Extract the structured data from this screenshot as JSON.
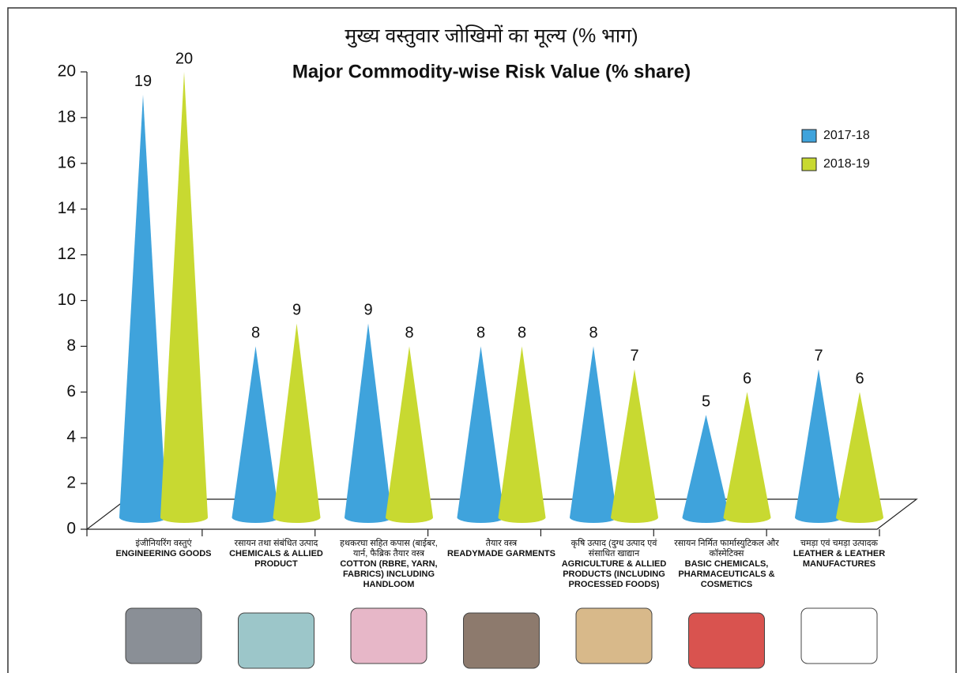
{
  "chart_data": {
    "type": "cone-bar",
    "title_hindi": "मुख्य वस्तुवार जोखिमों का मूल्य (% भाग)",
    "title": "Major Commodity-wise Risk Value (% share)",
    "categories": [
      "ENGINEERING GOODS",
      "CHEMICALS & ALLIED PRODUCT",
      "COTTON (RBRE, YARN, FABRICS) INCLUDING HANDLOOM",
      "READYMADE GARMENTS",
      "AGRICULTURE & ALLIED PRODUCTS (INCLUDING PROCESSED FOODS)",
      "BASIC CHEMICALS, PHARMACEUTICALS & COSMETICS",
      "LEATHER & LEATHER MANUFACTURES"
    ],
    "categories_hindi": [
      "इंजीनियरिंग वस्तुएं",
      "रसायन तथा संबंधित उत्पाद",
      "हथकरघा सहित कपास (बाईबर, यार्न, फैब्रिक तैयार वस्त्र",
      "तैयार वस्त्र",
      "कृषि उत्पाद (दुग्ध उत्पाद एवं संसाधित खाद्यान",
      "रसायन निर्मित फार्मास्युटिकल और कॉस्मेटिक्स",
      "चमड़ा एवं चमड़ा उत्पादक"
    ],
    "series": [
      {
        "name": "2017-18",
        "color": "#3fa3dc",
        "values": [
          19,
          8,
          9,
          8,
          8,
          5,
          7
        ]
      },
      {
        "name": "2018-19",
        "color": "#c8d931",
        "values": [
          20,
          9,
          8,
          8,
          7,
          6,
          6
        ]
      }
    ],
    "ylim": [
      0,
      20
    ],
    "yticks": [
      0,
      2,
      4,
      6,
      8,
      10,
      12,
      14,
      16,
      18,
      20
    ]
  }
}
